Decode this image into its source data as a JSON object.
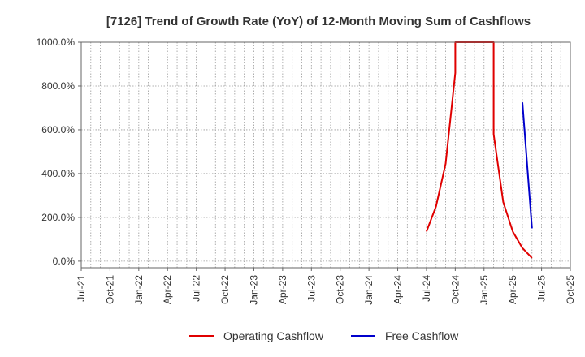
{
  "chart_data": {
    "type": "line",
    "title": "[7126]  Trend of Growth Rate (YoY) of 12-Month Moving Sum of Cashflows",
    "xlabel": "",
    "ylabel": "",
    "ylim": [
      -30,
      1000
    ],
    "yticks": [
      0,
      200,
      400,
      600,
      800,
      1000
    ],
    "ytick_labels": [
      "0.0%",
      "200.0%",
      "400.0%",
      "600.0%",
      "800.0%",
      "1000.0%"
    ],
    "xlim": [
      "2021-07",
      "2025-10"
    ],
    "xtick_labels": [
      "Jul-21",
      "Oct-21",
      "Jan-22",
      "Apr-22",
      "Jul-22",
      "Oct-22",
      "Jan-23",
      "Apr-23",
      "Jul-23",
      "Oct-23",
      "Jan-24",
      "Apr-24",
      "Jul-24",
      "Oct-24",
      "Jan-25",
      "Apr-25",
      "Jul-25",
      "Oct-25"
    ],
    "grid": true,
    "legend_position": "bottom",
    "series": [
      {
        "name": "Operating Cashflow",
        "color": "#e00000",
        "points": [
          [
            "2024-07",
            135
          ],
          [
            "2024-08",
            250
          ],
          [
            "2024-09",
            445
          ],
          [
            "2024-10",
            860
          ],
          [
            "2024-10",
            1000
          ],
          [
            "2025-02",
            1000
          ],
          [
            "2025-02",
            580
          ],
          [
            "2025-03",
            270
          ],
          [
            "2025-04",
            135
          ],
          [
            "2025-05",
            60
          ],
          [
            "2025-06",
            15
          ]
        ]
      },
      {
        "name": "Free Cashflow",
        "color": "#0000cc",
        "points": [
          [
            "2025-05",
            725
          ],
          [
            "2025-06",
            150
          ]
        ]
      }
    ]
  }
}
